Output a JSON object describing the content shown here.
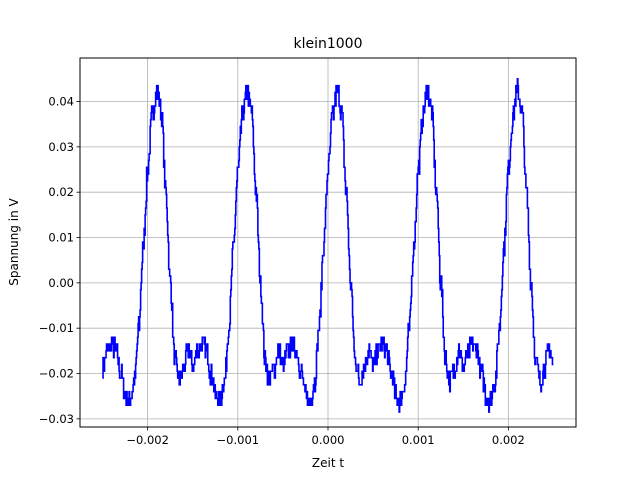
{
  "chart_data": {
    "type": "line",
    "title": "klein1000",
    "xlabel": "Zeit t",
    "ylabel": "Spannung in V",
    "xlim": [
      -0.00275,
      0.00275
    ],
    "ylim": [
      -0.0318,
      0.0496
    ],
    "grid": true,
    "line_color": "#0000ff",
    "x_ticks": [
      -0.002,
      -0.001,
      0.0,
      0.001,
      0.002
    ],
    "x_tick_labels": [
      "−0.002",
      "−0.001",
      "0.000",
      "0.001",
      "0.002"
    ],
    "y_ticks": [
      -0.03,
      -0.02,
      -0.01,
      0.0,
      0.01,
      0.02,
      0.03,
      0.04
    ],
    "y_tick_labels": [
      "−0.03",
      "−0.02",
      "−0.01",
      "0.00",
      "0.01",
      "0.02",
      "0.03",
      "0.04"
    ],
    "series": [
      {
        "x_start": -0.0025,
        "x_end": 0.0025,
        "period": 0.001,
        "cycle_shape": [
          {
            "dx": 0.0,
            "y": -0.0185
          },
          {
            "dx": 5e-05,
            "y": -0.015
          },
          {
            "dx": 0.0001,
            "y": -0.0135
          },
          {
            "dx": 0.00015,
            "y": -0.015
          },
          {
            "dx": 0.0002,
            "y": -0.02
          },
          {
            "dx": 0.00026,
            "y": -0.0255
          },
          {
            "dx": 0.0003,
            "y": -0.026
          },
          {
            "dx": 0.00035,
            "y": -0.022
          },
          {
            "dx": 0.0004,
            "y": -0.01
          },
          {
            "dx": 0.00045,
            "y": 0.008
          },
          {
            "dx": 0.0005,
            "y": 0.025
          },
          {
            "dx": 0.00055,
            "y": 0.037
          },
          {
            "dx": 0.0006,
            "y": 0.0425
          },
          {
            "dx": 0.00065,
            "y": 0.038
          },
          {
            "dx": 0.0007,
            "y": 0.02
          },
          {
            "dx": 0.00075,
            "y": 0.0
          },
          {
            "dx": 0.0008,
            "y": -0.017
          },
          {
            "dx": 0.00085,
            "y": -0.0215
          },
          {
            "dx": 0.0009,
            "y": -0.019
          },
          {
            "dx": 0.00095,
            "y": -0.0145
          },
          {
            "dx": 0.001,
            "y": -0.0185
          }
        ]
      }
    ]
  }
}
